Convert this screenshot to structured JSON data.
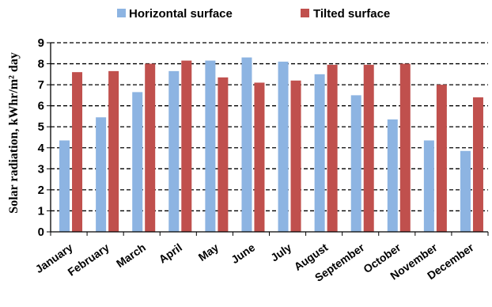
{
  "chart_data": {
    "type": "bar",
    "title": "",
    "xlabel": "",
    "ylabel": "Solar radiation, kWhr/m² day",
    "ylim": [
      0,
      9
    ],
    "yticks": [
      "0",
      "1",
      "2",
      "3",
      "4",
      "5",
      "6",
      "7",
      "8",
      "9"
    ],
    "grid": "horizontal dashed",
    "legend_position": "top-center",
    "categories": [
      "January",
      "February",
      "March",
      "April",
      "May",
      "June",
      "July",
      "August",
      "September",
      "October",
      "November",
      "December"
    ],
    "series": [
      {
        "name": "Horizontal surface",
        "color": "#8db4e2",
        "values": [
          4.35,
          5.45,
          6.65,
          7.65,
          8.15,
          8.3,
          8.1,
          7.5,
          6.5,
          5.35,
          4.35,
          3.85
        ]
      },
      {
        "name": "Tilted surface",
        "color": "#c0504d",
        "values": [
          7.6,
          7.65,
          8.0,
          8.15,
          7.35,
          7.1,
          7.2,
          7.95,
          7.95,
          8.0,
          7.0,
          6.4
        ]
      }
    ]
  }
}
